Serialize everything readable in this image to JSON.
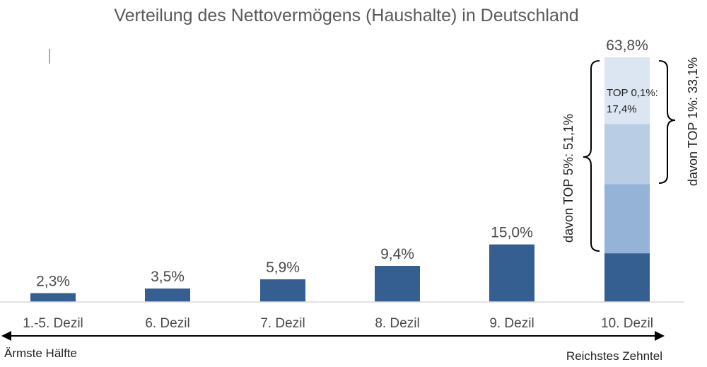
{
  "chart_data": {
    "type": "bar",
    "title": "Verteilung des Nettovermögens (Haushalte) in Deutschland",
    "categories": [
      "1.-5. Dezil",
      "6. Dezil",
      "7. Dezil",
      "8. Dezil",
      "9. Dezil",
      "10. Dezil"
    ],
    "values": [
      2.3,
      3.5,
      5.9,
      9.4,
      15.0,
      63.8
    ],
    "value_labels": [
      "2,3%",
      "3,5%",
      "5,9%",
      "9,4%",
      "15,0%",
      "63,8%"
    ],
    "ylim": [
      0,
      63.8
    ],
    "grid": false,
    "stacked_top_decile": [
      {
        "values": [
          12.7
        ]
      },
      {
        "values": [
          18.0
        ]
      },
      {
        "values": [
          15.7
        ]
      },
      {
        "values": [
          17.4
        ]
      }
    ],
    "annotations": {
      "top01_line1": "TOP 0,1%:",
      "top01_line2": "17,4%",
      "top1": "davon TOP 1%: 33,1%",
      "top5": "davon TOP 5%: 51,1%",
      "left_end": "Ärmste Hälfte",
      "right_end": "Reichstes Zehntel"
    },
    "colors": {
      "bar": "#365f91",
      "segments": [
        "#365f91",
        "#95b3d7",
        "#b9cde5",
        "#dce6f2"
      ]
    }
  }
}
